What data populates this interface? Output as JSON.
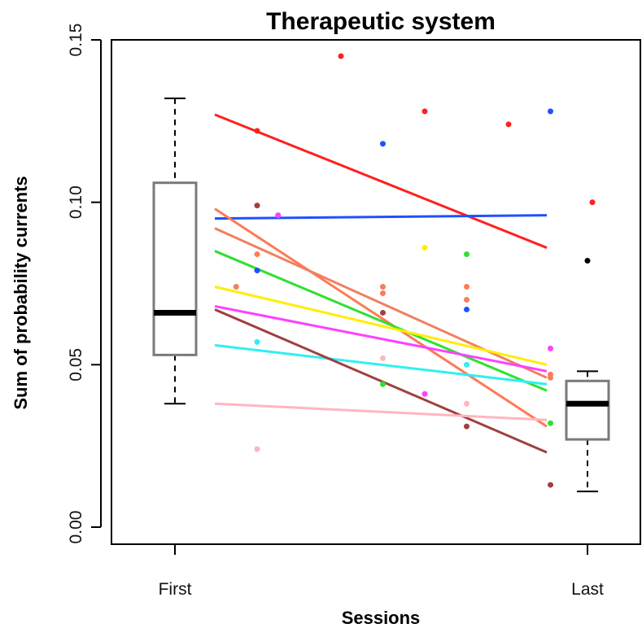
{
  "chart_data": {
    "type": "scatter",
    "title": "Therapeutic system",
    "xlabel": "Sessions",
    "ylabel": "Sum of probability currents",
    "x_categories": [
      "First",
      "Last"
    ],
    "yticks": [
      "0.00",
      "0.05",
      "0.10",
      "0.15"
    ],
    "ylim": [
      0.0,
      0.15
    ],
    "boxplots": [
      {
        "category": "First",
        "whisker_low": 0.038,
        "q1": 0.053,
        "median": 0.066,
        "q3": 0.106,
        "whisker_high": 0.132,
        "outliers": []
      },
      {
        "category": "Last",
        "whisker_low": 0.011,
        "q1": 0.027,
        "median": 0.038,
        "q3": 0.045,
        "whisker_high": 0.048,
        "outliers": [
          0.082
        ]
      }
    ],
    "series": [
      {
        "color": "#ff2020",
        "line": [
          0.127,
          0.086
        ],
        "points": [
          [
            1,
            0.122
          ],
          [
            3,
            0.145
          ],
          [
            5,
            0.128
          ],
          [
            7,
            0.124
          ],
          [
            9,
            0.1
          ]
        ]
      },
      {
        "color": "#2050ff",
        "line": [
          0.095,
          0.096
        ],
        "points": [
          [
            1,
            0.079
          ],
          [
            4,
            0.118
          ],
          [
            6,
            0.067
          ],
          [
            8,
            0.128
          ]
        ]
      },
      {
        "color": "#ff7a55",
        "line": [
          0.098,
          0.031
        ],
        "points": [
          [
            1,
            0.084
          ],
          [
            4,
            0.072
          ],
          [
            6,
            0.074
          ],
          [
            8,
            0.047
          ]
        ]
      },
      {
        "color": "#f08060",
        "line": [
          0.092,
          0.046
        ],
        "points": [
          [
            0.5,
            0.074
          ],
          [
            4,
            0.074
          ],
          [
            6,
            0.07
          ],
          [
            8,
            0.046
          ]
        ]
      },
      {
        "color": "#30e030",
        "line": [
          0.085,
          0.042
        ],
        "points": [
          [
            4,
            0.044
          ],
          [
            6,
            0.084
          ],
          [
            8,
            0.032
          ]
        ]
      },
      {
        "color": "#ffee00",
        "line": [
          0.074,
          0.05
        ],
        "points": [
          [
            5,
            0.086
          ]
        ]
      },
      {
        "color": "#ff40ff",
        "line": [
          0.068,
          0.048
        ],
        "points": [
          [
            1.5,
            0.096
          ],
          [
            5,
            0.041
          ],
          [
            8,
            0.055
          ]
        ]
      },
      {
        "color": "#30f0f0",
        "line": [
          0.056,
          0.044
        ],
        "points": [
          [
            1,
            0.057
          ],
          [
            6,
            0.05
          ]
        ]
      },
      {
        "color": "#a04040",
        "line": [
          0.067,
          0.023
        ],
        "points": [
          [
            1,
            0.099
          ],
          [
            4,
            0.066
          ],
          [
            6,
            0.031
          ],
          [
            8,
            0.013
          ]
        ]
      },
      {
        "color": "#ffb6c1",
        "line": [
          0.038,
          0.033
        ],
        "points": [
          [
            1,
            0.024
          ],
          [
            4,
            0.052
          ],
          [
            6,
            0.038
          ]
        ]
      }
    ]
  }
}
